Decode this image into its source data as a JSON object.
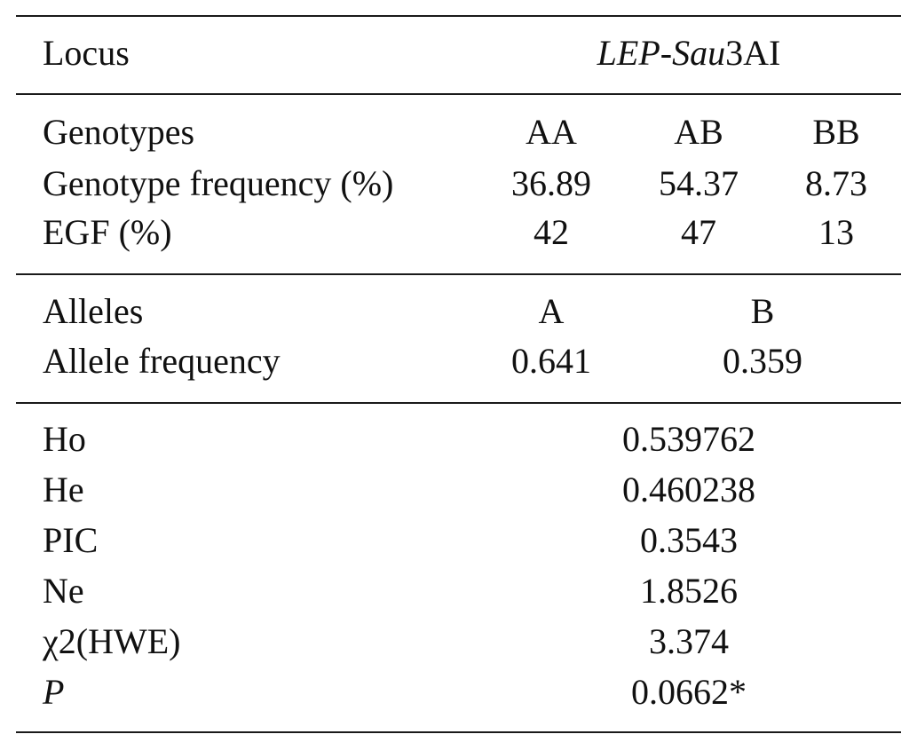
{
  "header": {
    "locus_label": "Locus",
    "locus_name_italic_a": "LEP",
    "locus_name_dash": "-",
    "locus_name_italic_b": "Sau",
    "locus_name_plain": "3AI"
  },
  "genotypes": {
    "label": "Genotypes",
    "columns": [
      "AA",
      "AB",
      "BB"
    ],
    "frequency_label": "Genotype frequency (%)",
    "frequency_values": [
      "36.89",
      "54.37",
      "8.73"
    ],
    "egf_label": "EGF (%)",
    "egf_values": [
      "42",
      "47",
      "13"
    ]
  },
  "alleles": {
    "label": "Alleles",
    "columns": [
      "A",
      "B"
    ],
    "frequency_label": "Allele frequency",
    "frequency_values": [
      "0.641",
      "0.359"
    ]
  },
  "stats": [
    {
      "label": "Ho",
      "value": "0.539762"
    },
    {
      "label": "He",
      "value": "0.460238"
    },
    {
      "label": "PIC",
      "value": "0.3543"
    },
    {
      "label": "Ne",
      "value": "1.8526"
    },
    {
      "label": "χ2(HWE)",
      "value": "3.374"
    },
    {
      "label": "P",
      "value": "0.0662*"
    }
  ]
}
